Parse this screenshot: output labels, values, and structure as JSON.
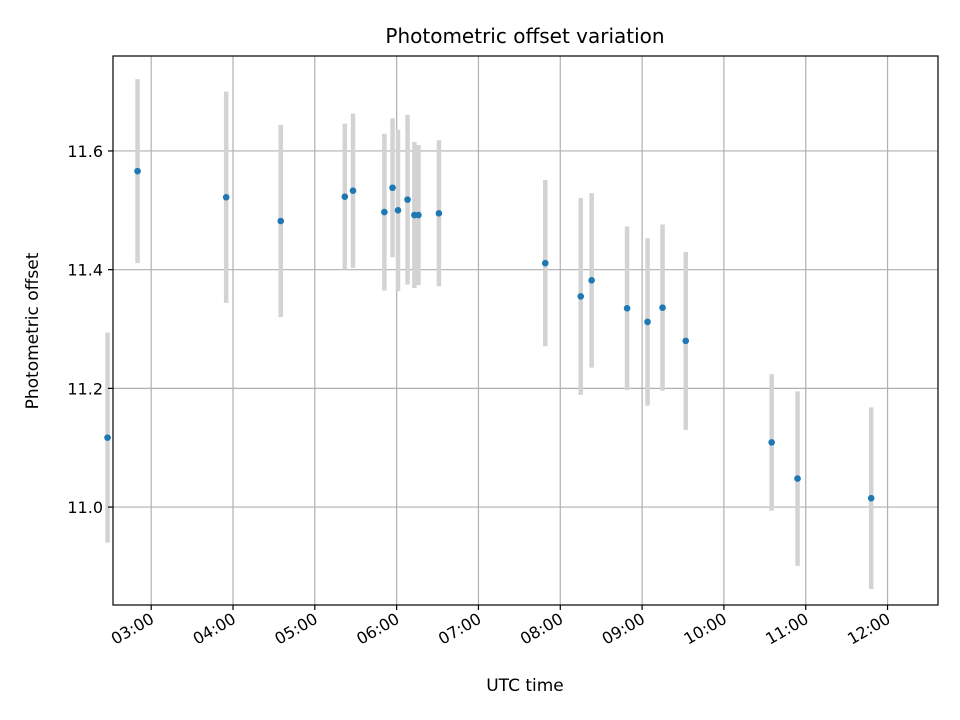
{
  "chart_data": {
    "type": "scatter",
    "title": "Photometric offset variation",
    "xlabel": "UTC time",
    "ylabel": "Photometric offset",
    "xlim": [
      "02:32",
      "12:37"
    ],
    "ylim": [
      10.835,
      11.76
    ],
    "grid": true,
    "x_ticks": [
      "03:00",
      "04:00",
      "05:00",
      "06:00",
      "07:00",
      "08:00",
      "09:00",
      "10:00",
      "11:00",
      "12:00"
    ],
    "y_ticks": [
      "11.0",
      "11.2",
      "11.4",
      "11.6"
    ],
    "marker_color": "#1f77b4",
    "errorbar_color": "#d3d3d3",
    "points": [
      {
        "x": "02:28",
        "y": 11.117,
        "yerr": 0.177
      },
      {
        "x": "02:50",
        "y": 11.566,
        "yerr": 0.155
      },
      {
        "x": "03:55",
        "y": 11.522,
        "yerr": 0.178
      },
      {
        "x": "04:35",
        "y": 11.482,
        "yerr": 0.162
      },
      {
        "x": "05:22",
        "y": 11.523,
        "yerr": 0.123
      },
      {
        "x": "05:28",
        "y": 11.533,
        "yerr": 0.13
      },
      {
        "x": "05:51",
        "y": 11.497,
        "yerr": 0.132
      },
      {
        "x": "05:57",
        "y": 11.538,
        "yerr": 0.117
      },
      {
        "x": "06:01",
        "y": 11.5,
        "yerr": 0.136
      },
      {
        "x": "06:08",
        "y": 11.518,
        "yerr": 0.143
      },
      {
        "x": "06:13",
        "y": 11.492,
        "yerr": 0.123
      },
      {
        "x": "06:16",
        "y": 11.492,
        "yerr": 0.118
      },
      {
        "x": "06:31",
        "y": 11.495,
        "yerr": 0.123
      },
      {
        "x": "07:49",
        "y": 11.411,
        "yerr": 0.14
      },
      {
        "x": "08:15",
        "y": 11.355,
        "yerr": 0.166
      },
      {
        "x": "08:23",
        "y": 11.382,
        "yerr": 0.147
      },
      {
        "x": "08:49",
        "y": 11.335,
        "yerr": 0.138
      },
      {
        "x": "09:04",
        "y": 11.312,
        "yerr": 0.141
      },
      {
        "x": "09:15",
        "y": 11.336,
        "yerr": 0.14
      },
      {
        "x": "09:32",
        "y": 11.28,
        "yerr": 0.15
      },
      {
        "x": "10:35",
        "y": 11.109,
        "yerr": 0.115
      },
      {
        "x": "10:54",
        "y": 11.048,
        "yerr": 0.147
      },
      {
        "x": "11:48",
        "y": 11.015,
        "yerr": 0.153
      }
    ]
  }
}
